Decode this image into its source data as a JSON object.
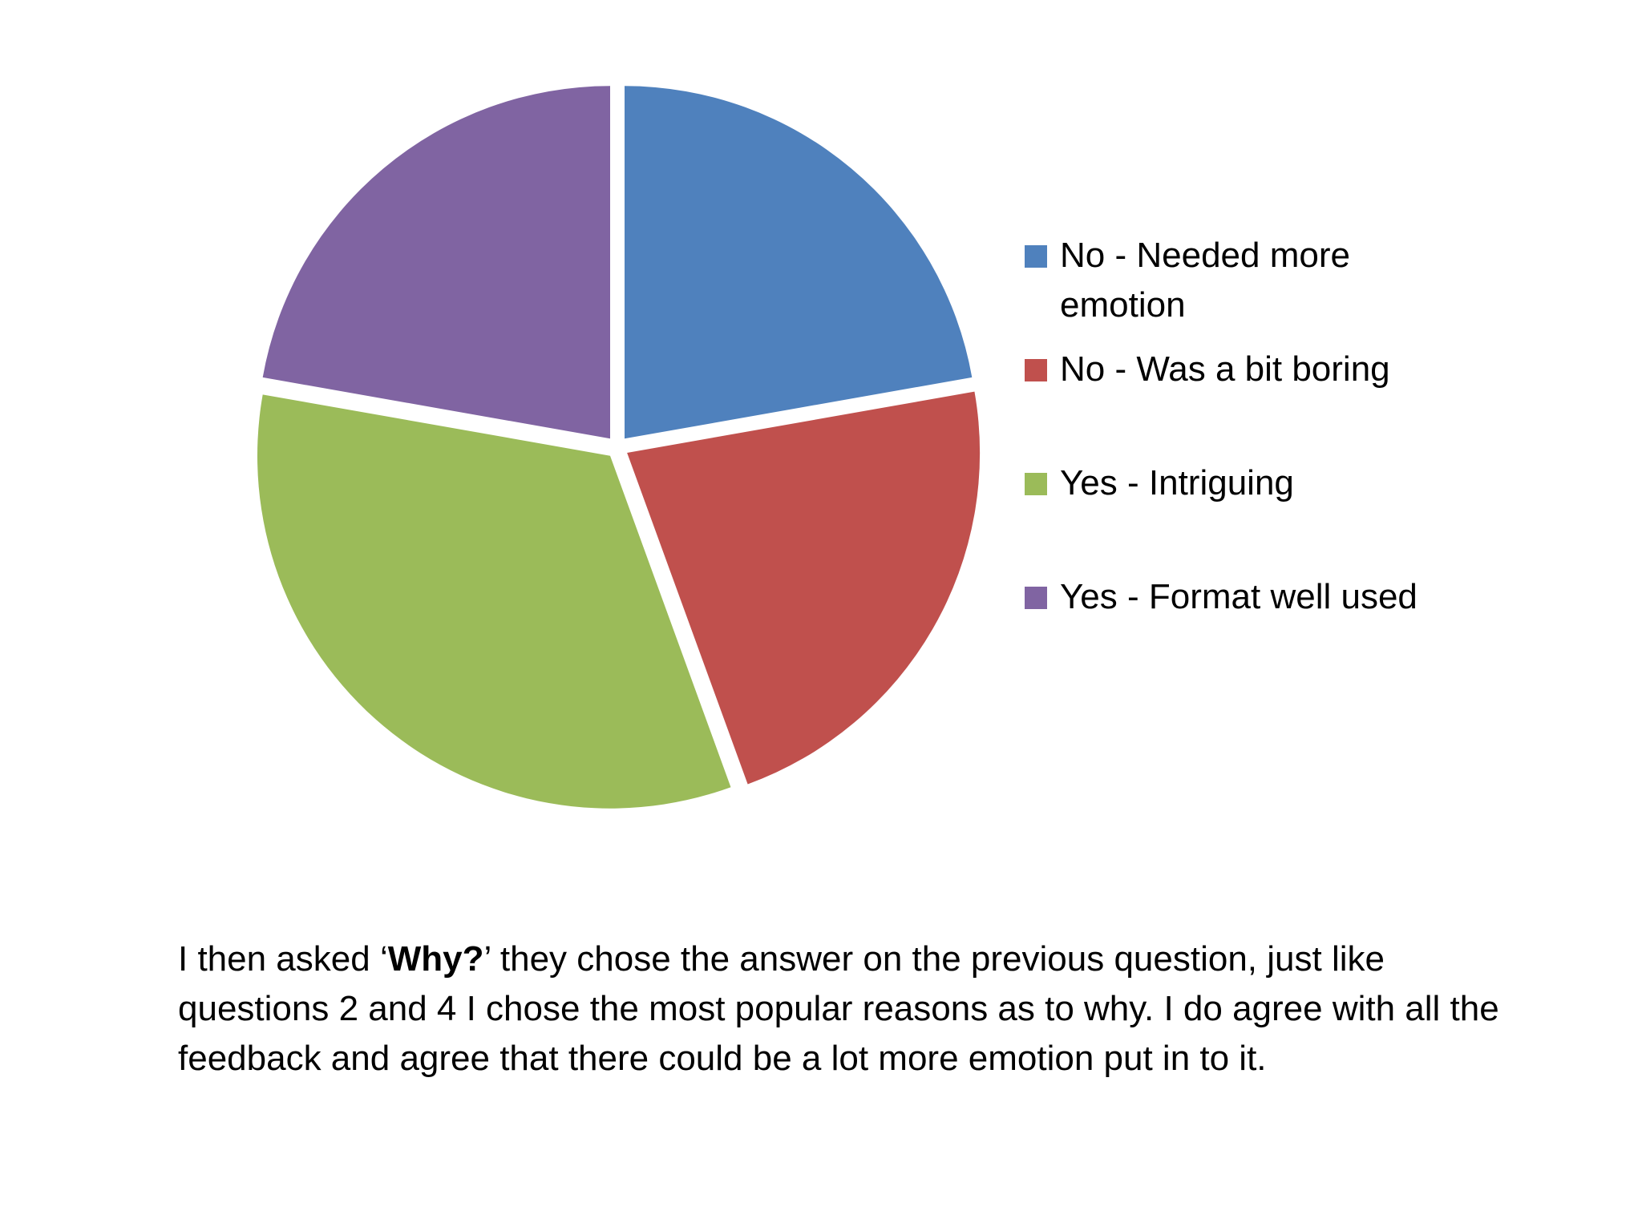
{
  "chart_data": {
    "type": "pie",
    "title": "",
    "categories": [
      "No - Needed more emotion",
      "No - Was a bit boring",
      "Yes - Intriguing",
      "Yes - Format well used"
    ],
    "values": [
      22.2,
      22.2,
      33.3,
      22.2
    ],
    "colors": [
      "#4F81BD",
      "#C0504D",
      "#9BBB59",
      "#8064A2"
    ],
    "exploded": true,
    "legend_position": "right"
  },
  "caption": {
    "before": "I then asked ‘",
    "bold": "Why?",
    "after": "’ they chose the answer on the previous question, just like questions 2 and 4 I  chose the most popular reasons as to why. I do agree with all the feedback and agree that there could be a lot more emotion put in to it."
  }
}
